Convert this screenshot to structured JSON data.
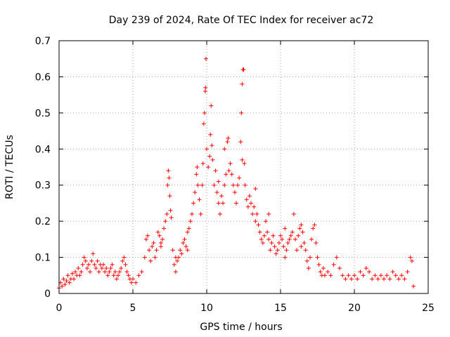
{
  "chart_data": {
    "type": "scatter",
    "title": "Day 239 of 2024, Rate Of TEC Index for receiver ac72",
    "xlabel": "GPS time / hours",
    "ylabel": "ROTI / TECUs",
    "xlim": [
      0,
      25
    ],
    "ylim": [
      0,
      0.7
    ],
    "xticks": [
      0,
      5,
      10,
      15,
      20,
      25
    ],
    "yticks": [
      0,
      0.1,
      0.2,
      0.3,
      0.4,
      0.5,
      0.6,
      0.7
    ],
    "grid": true,
    "marker": "plus",
    "colors": {
      "points": "#ff0000",
      "grid": "#a0a0a0",
      "axes": "#000000"
    },
    "data_range_x": [
      0,
      24
    ],
    "series": [
      {
        "points": [
          [
            0.0,
            0.015
          ],
          [
            0.1,
            0.03
          ],
          [
            0.2,
            0.02
          ],
          [
            0.3,
            0.04
          ],
          [
            0.4,
            0.025
          ],
          [
            0.5,
            0.035
          ],
          [
            0.6,
            0.05
          ],
          [
            0.7,
            0.03
          ],
          [
            0.8,
            0.04
          ],
          [
            0.9,
            0.055
          ],
          [
            1.0,
            0.04
          ],
          [
            1.1,
            0.06
          ],
          [
            1.2,
            0.05
          ],
          [
            1.3,
            0.07
          ],
          [
            1.4,
            0.05
          ],
          [
            1.5,
            0.06
          ],
          [
            1.6,
            0.08
          ],
          [
            1.7,
            0.1
          ],
          [
            1.8,
            0.09
          ],
          [
            1.9,
            0.07
          ],
          [
            2.0,
            0.08
          ],
          [
            2.1,
            0.06
          ],
          [
            2.2,
            0.09
          ],
          [
            2.3,
            0.11
          ],
          [
            2.4,
            0.08
          ],
          [
            2.5,
            0.07
          ],
          [
            2.6,
            0.09
          ],
          [
            2.7,
            0.06
          ],
          [
            2.8,
            0.08
          ],
          [
            2.9,
            0.07
          ],
          [
            3.0,
            0.08
          ],
          [
            3.1,
            0.06
          ],
          [
            3.2,
            0.07
          ],
          [
            3.3,
            0.05
          ],
          [
            3.4,
            0.06
          ],
          [
            3.5,
            0.07
          ],
          [
            3.6,
            0.08
          ],
          [
            3.7,
            0.05
          ],
          [
            3.8,
            0.06
          ],
          [
            3.9,
            0.04
          ],
          [
            4.0,
            0.05
          ],
          [
            4.1,
            0.06
          ],
          [
            4.2,
            0.07
          ],
          [
            4.3,
            0.09
          ],
          [
            4.4,
            0.1
          ],
          [
            4.5,
            0.08
          ],
          [
            4.6,
            0.06
          ],
          [
            4.7,
            0.05
          ],
          [
            4.8,
            0.04
          ],
          [
            4.9,
            0.03
          ],
          [
            5.0,
            0.04
          ],
          [
            5.2,
            0.03
          ],
          [
            5.4,
            0.05
          ],
          [
            5.6,
            0.06
          ],
          [
            5.8,
            0.1
          ],
          [
            5.9,
            0.15
          ],
          [
            6.0,
            0.16
          ],
          [
            6.1,
            0.12
          ],
          [
            6.2,
            0.09
          ],
          [
            6.3,
            0.13
          ],
          [
            6.4,
            0.14
          ],
          [
            6.5,
            0.1
          ],
          [
            6.6,
            0.12
          ],
          [
            6.7,
            0.17
          ],
          [
            6.8,
            0.16
          ],
          [
            6.9,
            0.14
          ],
          [
            7.0,
            0.15
          ],
          [
            7.1,
            0.18
          ],
          [
            7.2,
            0.2
          ],
          [
            7.3,
            0.22
          ],
          [
            7.35,
            0.3
          ],
          [
            7.4,
            0.34
          ],
          [
            7.45,
            0.32
          ],
          [
            7.5,
            0.27
          ],
          [
            7.55,
            0.23
          ],
          [
            7.6,
            0.21
          ],
          [
            7.7,
            0.12
          ],
          [
            7.8,
            0.08
          ],
          [
            7.9,
            0.06
          ],
          [
            8.0,
            0.09
          ],
          [
            8.1,
            0.1
          ],
          [
            8.2,
            0.12
          ],
          [
            8.3,
            0.11
          ],
          [
            8.4,
            0.14
          ],
          [
            8.5,
            0.15
          ],
          [
            8.6,
            0.13
          ],
          [
            8.7,
            0.12
          ],
          [
            8.8,
            0.18
          ],
          [
            8.9,
            0.2
          ],
          [
            9.0,
            0.22
          ],
          [
            9.1,
            0.25
          ],
          [
            9.2,
            0.28
          ],
          [
            9.3,
            0.33
          ],
          [
            9.35,
            0.35
          ],
          [
            9.4,
            0.3
          ],
          [
            9.5,
            0.26
          ],
          [
            9.6,
            0.22
          ],
          [
            9.7,
            0.3
          ],
          [
            9.75,
            0.36
          ],
          [
            9.8,
            0.47
          ],
          [
            9.85,
            0.5
          ],
          [
            9.9,
            0.56
          ],
          [
            9.92,
            0.57
          ],
          [
            9.95,
            0.65
          ],
          [
            10.0,
            0.4
          ],
          [
            10.1,
            0.35
          ],
          [
            10.2,
            0.38
          ],
          [
            10.25,
            0.44
          ],
          [
            10.3,
            0.52
          ],
          [
            10.35,
            0.41
          ],
          [
            10.4,
            0.37
          ],
          [
            10.5,
            0.3
          ],
          [
            10.6,
            0.34
          ],
          [
            10.7,
            0.28
          ],
          [
            10.8,
            0.25
          ],
          [
            10.9,
            0.22
          ],
          [
            11.0,
            0.27
          ],
          [
            11.1,
            0.25
          ],
          [
            11.2,
            0.3
          ],
          [
            11.3,
            0.33
          ],
          [
            11.4,
            0.42
          ],
          [
            11.45,
            0.43
          ],
          [
            11.5,
            0.34
          ],
          [
            11.6,
            0.36
          ],
          [
            11.7,
            0.33
          ],
          [
            11.8,
            0.3
          ],
          [
            11.9,
            0.28
          ],
          [
            12.0,
            0.25
          ],
          [
            12.1,
            0.3
          ],
          [
            12.2,
            0.32
          ],
          [
            12.3,
            0.42
          ],
          [
            12.35,
            0.5
          ],
          [
            12.4,
            0.58
          ],
          [
            12.45,
            0.62
          ],
          [
            12.5,
            0.62
          ],
          [
            12.55,
            0.36
          ],
          [
            12.6,
            0.3
          ],
          [
            12.7,
            0.26
          ],
          [
            12.8,
            0.24
          ],
          [
            12.9,
            0.27
          ],
          [
            13.0,
            0.25
          ],
          [
            13.1,
            0.22
          ],
          [
            13.2,
            0.24
          ],
          [
            13.3,
            0.2
          ],
          [
            13.4,
            0.22
          ],
          [
            13.5,
            0.19
          ],
          [
            13.6,
            0.17
          ],
          [
            13.7,
            0.15
          ],
          [
            13.8,
            0.14
          ],
          [
            13.9,
            0.16
          ],
          [
            14.0,
            0.2
          ],
          [
            14.1,
            0.17
          ],
          [
            14.2,
            0.15
          ],
          [
            14.3,
            0.12
          ],
          [
            14.4,
            0.14
          ],
          [
            14.5,
            0.16
          ],
          [
            14.6,
            0.13
          ],
          [
            14.7,
            0.11
          ],
          [
            14.8,
            0.12
          ],
          [
            14.9,
            0.14
          ],
          [
            15.0,
            0.16
          ],
          [
            15.1,
            0.15
          ],
          [
            15.2,
            0.13
          ],
          [
            15.3,
            0.1
          ],
          [
            15.4,
            0.12
          ],
          [
            15.5,
            0.14
          ],
          [
            15.6,
            0.15
          ],
          [
            15.7,
            0.16
          ],
          [
            15.8,
            0.17
          ],
          [
            15.9,
            0.22
          ],
          [
            16.0,
            0.15
          ],
          [
            16.1,
            0.12
          ],
          [
            16.2,
            0.16
          ],
          [
            16.3,
            0.18
          ],
          [
            16.4,
            0.19
          ],
          [
            16.5,
            0.17
          ],
          [
            16.6,
            0.14
          ],
          [
            16.7,
            0.12
          ],
          [
            16.8,
            0.09
          ],
          [
            16.9,
            0.07
          ],
          [
            17.0,
            0.1
          ],
          [
            17.1,
            0.15
          ],
          [
            17.2,
            0.18
          ],
          [
            17.3,
            0.19
          ],
          [
            17.4,
            0.14
          ],
          [
            17.5,
            0.1
          ],
          [
            17.6,
            0.08
          ],
          [
            17.7,
            0.06
          ],
          [
            17.8,
            0.05
          ],
          [
            17.9,
            0.07
          ],
          [
            18.0,
            0.05
          ],
          [
            18.2,
            0.06
          ],
          [
            18.4,
            0.05
          ],
          [
            18.6,
            0.08
          ],
          [
            18.8,
            0.1
          ],
          [
            19.0,
            0.07
          ],
          [
            19.2,
            0.05
          ],
          [
            19.4,
            0.04
          ],
          [
            19.6,
            0.05
          ],
          [
            19.8,
            0.04
          ],
          [
            20.0,
            0.05
          ],
          [
            20.2,
            0.04
          ],
          [
            20.4,
            0.06
          ],
          [
            20.6,
            0.05
          ],
          [
            20.8,
            0.07
          ],
          [
            21.0,
            0.06
          ],
          [
            21.2,
            0.04
          ],
          [
            21.4,
            0.05
          ],
          [
            21.6,
            0.04
          ],
          [
            21.8,
            0.05
          ],
          [
            22.0,
            0.04
          ],
          [
            22.2,
            0.05
          ],
          [
            22.4,
            0.04
          ],
          [
            22.6,
            0.06
          ],
          [
            22.8,
            0.05
          ],
          [
            23.0,
            0.04
          ],
          [
            23.2,
            0.05
          ],
          [
            23.4,
            0.04
          ],
          [
            23.6,
            0.06
          ],
          [
            23.8,
            0.1
          ],
          [
            23.9,
            0.09
          ],
          [
            24.0,
            0.02
          ],
          [
            12.4,
            0.37
          ],
          [
            11.2,
            0.4
          ],
          [
            10.8,
            0.31
          ],
          [
            13.3,
            0.29
          ],
          [
            14.2,
            0.22
          ],
          [
            15.3,
            0.18
          ],
          [
            8.7,
            0.17
          ],
          [
            6.9,
            0.13
          ],
          [
            7.9,
            0.1
          ],
          [
            16.4,
            0.13
          ]
        ]
      }
    ]
  }
}
